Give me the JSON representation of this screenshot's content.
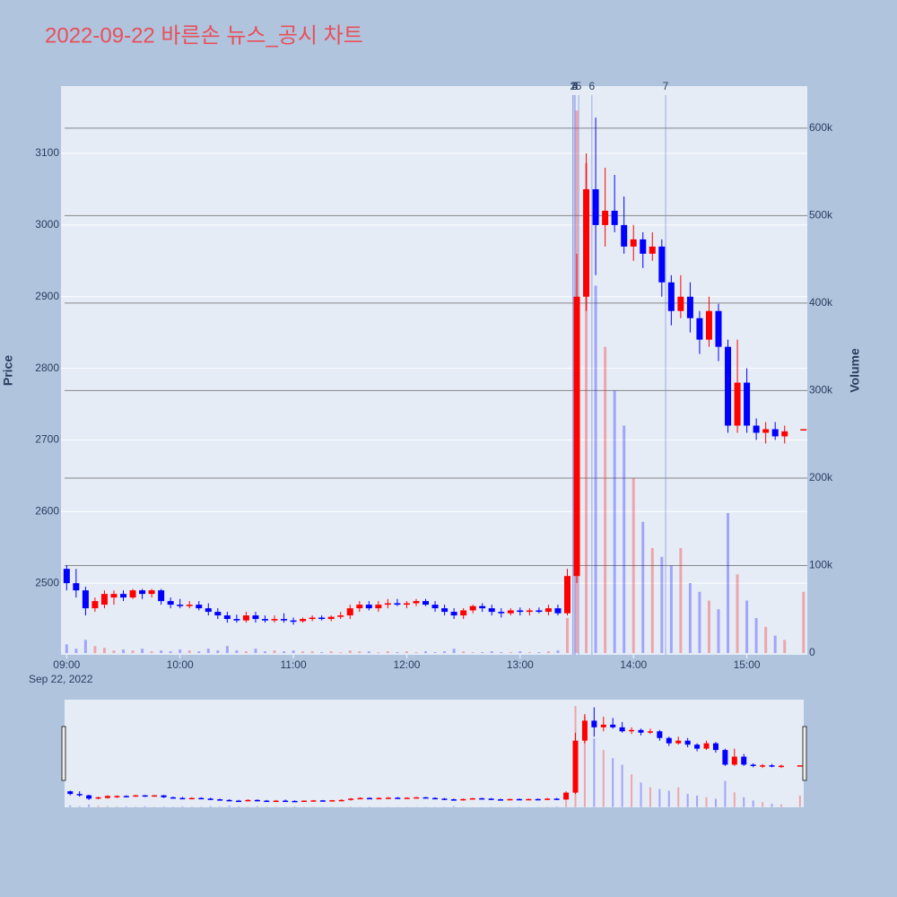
{
  "chart_data": {
    "type": "candlestick",
    "title": "2022-09-22 바른손 뉴스_공시 차트",
    "date_label": "Sep 22, 2022",
    "ylabel": "Price",
    "y2label": "Volume",
    "increasing_color": "#ff0000",
    "decreasing_color": "#0000ff",
    "xlim": [
      "08:57",
      "15:32"
    ],
    "xticks": [
      "09:00",
      "10:00",
      "11:00",
      "12:00",
      "13:00",
      "14:00",
      "15:00"
    ],
    "ylim": [
      2400,
      3194
    ],
    "yticks": [
      2500,
      2600,
      2700,
      2800,
      2900,
      3000,
      3100
    ],
    "y2lim": [
      -2000,
      648000
    ],
    "y2ticks": [
      0,
      {
        "value": 100000,
        "label": "100k"
      },
      {
        "value": 200000,
        "label": "200k"
      },
      {
        "value": 300000,
        "label": "300k"
      },
      {
        "value": 400000,
        "label": "400k"
      },
      {
        "value": 500000,
        "label": "500k"
      },
      {
        "value": 600000,
        "label": "600k"
      }
    ],
    "annotations": [
      {
        "x": "13:28",
        "label": "1"
      },
      {
        "x": "13:28",
        "label": "2"
      },
      {
        "x": "13:29",
        "label": "3"
      },
      {
        "x": "13:29",
        "label": "4"
      },
      {
        "x": "13:31",
        "label": "5"
      },
      {
        "x": "13:38",
        "label": "6"
      },
      {
        "x": "14:17",
        "label": "7"
      }
    ],
    "x": [
      "09:00",
      "09:05",
      "09:10",
      "09:15",
      "09:20",
      "09:25",
      "09:30",
      "09:35",
      "09:40",
      "09:45",
      "09:50",
      "09:55",
      "10:00",
      "10:05",
      "10:10",
      "10:15",
      "10:20",
      "10:25",
      "10:30",
      "10:35",
      "10:40",
      "10:45",
      "10:50",
      "10:55",
      "11:00",
      "11:05",
      "11:10",
      "11:15",
      "11:20",
      "11:25",
      "11:30",
      "11:35",
      "11:40",
      "11:45",
      "11:50",
      "11:55",
      "12:00",
      "12:05",
      "12:10",
      "12:15",
      "12:20",
      "12:25",
      "12:30",
      "12:35",
      "12:40",
      "12:45",
      "12:50",
      "12:55",
      "13:00",
      "13:05",
      "13:10",
      "13:15",
      "13:20",
      "13:25",
      "13:30",
      "13:35",
      "13:40",
      "13:45",
      "13:50",
      "13:55",
      "14:00",
      "14:05",
      "14:10",
      "14:15",
      "14:20",
      "14:25",
      "14:30",
      "14:35",
      "14:40",
      "14:45",
      "14:50",
      "14:55",
      "15:00",
      "15:05",
      "15:10",
      "15:15",
      "15:20",
      "15:30"
    ],
    "open": [
      2520,
      2500,
      2490,
      2465,
      2470,
      2480,
      2485,
      2480,
      2490,
      2485,
      2490,
      2475,
      2470,
      2468,
      2470,
      2465,
      2460,
      2455,
      2450,
      2448,
      2455,
      2450,
      2448,
      2450,
      2448,
      2447,
      2450,
      2452,
      2450,
      2453,
      2455,
      2465,
      2470,
      2465,
      2470,
      2472,
      2470,
      2472,
      2475,
      2470,
      2465,
      2460,
      2455,
      2462,
      2468,
      2465,
      2460,
      2458,
      2462,
      2460,
      2462,
      2460,
      2465,
      2458,
      2510,
      2900,
      3050,
      3000,
      3020,
      3000,
      2970,
      2980,
      2960,
      2970,
      2920,
      2880,
      2900,
      2870,
      2840,
      2880,
      2830,
      2720,
      2780,
      2720,
      2710,
      2715,
      2705,
      2715
    ],
    "high": [
      2525,
      2520,
      2495,
      2480,
      2490,
      2490,
      2490,
      2492,
      2492,
      2492,
      2492,
      2480,
      2478,
      2475,
      2475,
      2472,
      2465,
      2460,
      2456,
      2460,
      2460,
      2455,
      2455,
      2458,
      2452,
      2452,
      2455,
      2455,
      2455,
      2460,
      2470,
      2475,
      2475,
      2475,
      2478,
      2478,
      2475,
      2478,
      2478,
      2475,
      2470,
      2465,
      2465,
      2470,
      2472,
      2470,
      2465,
      2465,
      2466,
      2465,
      2466,
      2470,
      2470,
      2520,
      2960,
      3100,
      3150,
      3080,
      3070,
      3040,
      3000,
      2990,
      2990,
      2980,
      2930,
      2930,
      2920,
      2880,
      2900,
      2890,
      2840,
      2840,
      2800,
      2730,
      2725,
      2725,
      2720,
      2715
    ],
    "low": [
      2490,
      2480,
      2455,
      2460,
      2465,
      2470,
      2475,
      2478,
      2478,
      2480,
      2470,
      2465,
      2465,
      2465,
      2462,
      2455,
      2450,
      2445,
      2445,
      2445,
      2445,
      2445,
      2445,
      2445,
      2442,
      2445,
      2447,
      2448,
      2447,
      2450,
      2450,
      2460,
      2462,
      2460,
      2465,
      2468,
      2465,
      2468,
      2468,
      2460,
      2455,
      2450,
      2450,
      2458,
      2460,
      2455,
      2452,
      2455,
      2455,
      2455,
      2458,
      2455,
      2455,
      2455,
      2500,
      2880,
      2930,
      2970,
      2990,
      2960,
      2950,
      2940,
      2950,
      2900,
      2860,
      2870,
      2850,
      2820,
      2830,
      2810,
      2710,
      2710,
      2710,
      2700,
      2695,
      2700,
      2695,
      2715
    ],
    "close": [
      2500,
      2490,
      2465,
      2475,
      2485,
      2485,
      2480,
      2490,
      2485,
      2490,
      2475,
      2470,
      2468,
      2470,
      2465,
      2460,
      2455,
      2450,
      2448,
      2455,
      2450,
      2448,
      2450,
      2448,
      2447,
      2450,
      2452,
      2450,
      2453,
      2455,
      2465,
      2470,
      2465,
      2470,
      2472,
      2470,
      2472,
      2475,
      2470,
      2465,
      2460,
      2455,
      2462,
      2468,
      2465,
      2460,
      2458,
      2462,
      2460,
      2462,
      2460,
      2465,
      2458,
      2510,
      2900,
      3050,
      3000,
      3020,
      3000,
      2970,
      2980,
      2960,
      2970,
      2920,
      2880,
      2900,
      2870,
      2840,
      2880,
      2830,
      2720,
      2780,
      2720,
      2710,
      2715,
      2705,
      2712,
      2715
    ],
    "volume": [
      10000,
      5000,
      15000,
      8000,
      6000,
      3000,
      4000,
      3000,
      5000,
      2000,
      3000,
      2000,
      4000,
      3000,
      2000,
      5000,
      3000,
      8000,
      3000,
      2000,
      5000,
      2000,
      3000,
      2000,
      3000,
      2000,
      2000,
      1000,
      2000,
      1000,
      3000,
      2000,
      2000,
      1000,
      2000,
      1000,
      2000,
      1000,
      2000,
      1000,
      2000,
      5000,
      2000,
      1000,
      1000,
      2000,
      1000,
      1000,
      2000,
      1000,
      1000,
      2000,
      3000,
      40000,
      620000,
      560000,
      420000,
      350000,
      300000,
      260000,
      200000,
      150000,
      120000,
      110000,
      100000,
      120000,
      80000,
      70000,
      60000,
      50000,
      160000,
      90000,
      60000,
      40000,
      30000,
      20000,
      15000,
      70000
    ]
  }
}
